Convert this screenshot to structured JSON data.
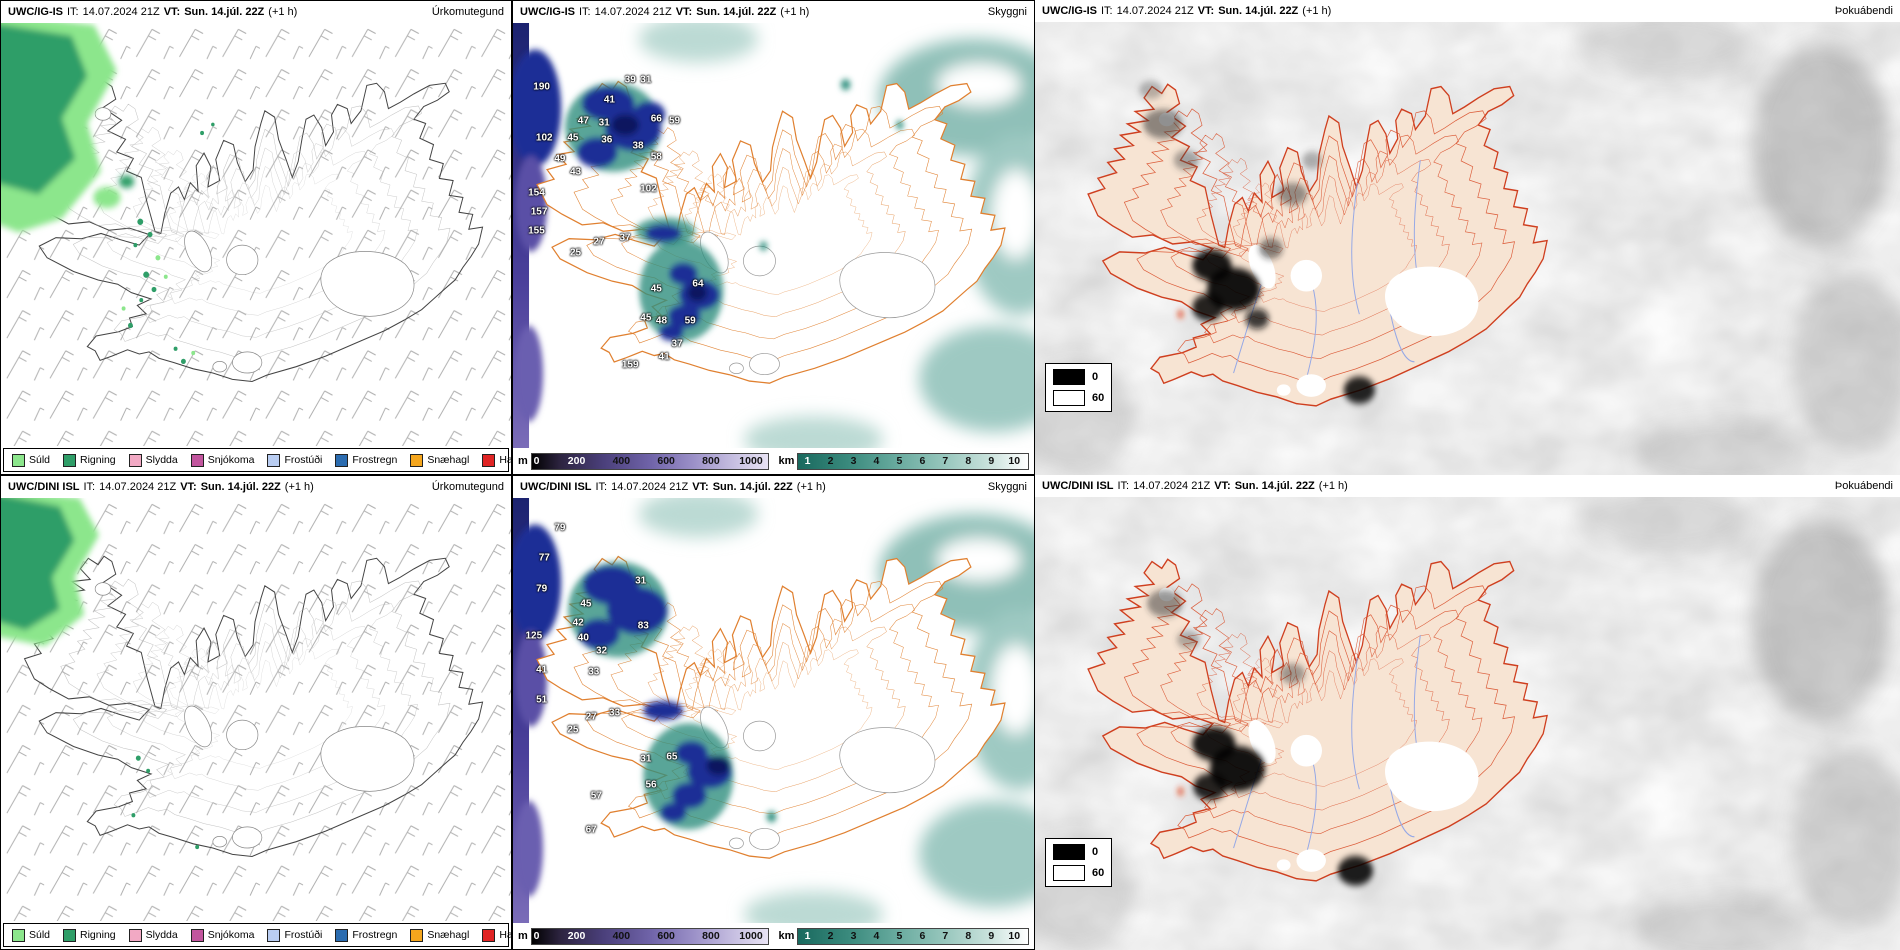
{
  "panels": [
    {
      "model": "UWC/IG-IS",
      "it_label": "IT:",
      "it_value": "14.07.2024 21Z",
      "vt_label": "VT:",
      "vt_value": "Sun. 14.júl. 22Z",
      "offset": "(+1 h)",
      "type_label": "Úrkomutegund"
    },
    {
      "model": "UWC/IG-IS",
      "it_label": "IT:",
      "it_value": "14.07.2024 21Z",
      "vt_label": "VT:",
      "vt_value": "Sun. 14.júl. 22Z",
      "offset": "(+1 h)",
      "type_label": "Skyggni"
    },
    {
      "model": "UWC/IG-IS",
      "it_label": "IT:",
      "it_value": "14.07.2024 21Z",
      "vt_label": "VT:",
      "vt_value": "Sun. 14.júl. 22Z",
      "offset": "(+1 h)",
      "type_label": "Þokuábendi"
    },
    {
      "model": "UWC/DINI ISL",
      "it_label": "IT:",
      "it_value": "14.07.2024 21Z",
      "vt_label": "VT:",
      "vt_value": "Sun. 14.júl. 22Z",
      "offset": "(+1 h)",
      "type_label": "Úrkomutegund"
    },
    {
      "model": "UWC/DINI ISL",
      "it_label": "IT:",
      "it_value": "14.07.2024 21Z",
      "vt_label": "VT:",
      "vt_value": "Sun. 14.júl. 22Z",
      "offset": "(+1 h)",
      "type_label": "Skyggni"
    },
    {
      "model": "UWC/DINI ISL",
      "it_label": "IT:",
      "it_value": "14.07.2024 21Z",
      "vt_label": "VT:",
      "vt_value": "Sun. 14.júl. 22Z",
      "offset": "(+1 h)",
      "type_label": "Þokuábendi"
    }
  ],
  "precip_legend": [
    {
      "label": "Súld",
      "color": "#8ce68c"
    },
    {
      "label": "Rigning",
      "color": "#2f9e68"
    },
    {
      "label": "Slydda",
      "color": "#f2a9c4"
    },
    {
      "label": "Snjókoma",
      "color": "#c2559e"
    },
    {
      "label": "Frostúði",
      "color": "#b9cdf2"
    },
    {
      "label": "Frostregn",
      "color": "#2b6cb0"
    },
    {
      "label": "Snæhagl",
      "color": "#f5a61d"
    },
    {
      "label": "Haglél",
      "color": "#e02424"
    }
  ],
  "cloudbase_bar": {
    "unit": "m",
    "colors": [
      "#000000",
      "#4a3f7a",
      "#6f63a8",
      "#9a8fc7",
      "#c3bbdf",
      "#e8e3f4"
    ],
    "ticks": [
      {
        "label": "0",
        "x": "2%",
        "color": "#ffffff"
      },
      {
        "label": "200",
        "x": "19%",
        "color": "#ffffff"
      },
      {
        "label": "400",
        "x": "38%",
        "color": "#111111"
      },
      {
        "label": "600",
        "x": "57%",
        "color": "#111111"
      },
      {
        "label": "800",
        "x": "76%",
        "color": "#111111"
      },
      {
        "label": "1000",
        "x": "93%",
        "color": "#111111"
      }
    ]
  },
  "visibility_bar": {
    "unit": "km",
    "colors": [
      "#19695e",
      "#3a8a7d",
      "#66a99d",
      "#93c4ba",
      "#c6e0da",
      "#ffffff"
    ],
    "ticks": [
      {
        "label": "1",
        "x": "4%",
        "color": "#ffffff"
      },
      {
        "label": "2",
        "x": "14%",
        "color": "#111111"
      },
      {
        "label": "3",
        "x": "24%",
        "color": "#111111"
      },
      {
        "label": "4",
        "x": "34%",
        "color": "#111111"
      },
      {
        "label": "5",
        "x": "44%",
        "color": "#111111"
      },
      {
        "label": "6",
        "x": "54%",
        "color": "#111111"
      },
      {
        "label": "7",
        "x": "64%",
        "color": "#111111"
      },
      {
        "label": "8",
        "x": "74%",
        "color": "#111111"
      },
      {
        "label": "9",
        "x": "84%",
        "color": "#111111"
      },
      {
        "label": "10",
        "x": "94%",
        "color": "#111111"
      }
    ]
  },
  "fog_legend": [
    {
      "value": "0",
      "color": "#000000"
    },
    {
      "value": "60",
      "color": "#ffffff"
    }
  ],
  "cloud_numbers_top": [
    {
      "v": "190",
      "x": "5.5%",
      "y": "15%"
    },
    {
      "v": "102",
      "x": "6%",
      "y": "27%"
    },
    {
      "v": "154",
      "x": "4.5%",
      "y": "40%"
    },
    {
      "v": "157",
      "x": "5%",
      "y": "44.5%"
    },
    {
      "v": "155",
      "x": "4.5%",
      "y": "49%"
    },
    {
      "v": "49",
      "x": "9%",
      "y": "32%"
    },
    {
      "v": "45",
      "x": "11.5%",
      "y": "27%"
    },
    {
      "v": "43",
      "x": "12%",
      "y": "35%"
    },
    {
      "v": "47",
      "x": "13.5%",
      "y": "23%"
    },
    {
      "v": "41",
      "x": "18.5%",
      "y": "18%"
    },
    {
      "v": "31",
      "x": "17.5%",
      "y": "23.5%"
    },
    {
      "v": "39",
      "x": "22.5%",
      "y": "13.5%"
    },
    {
      "v": "31",
      "x": "25.5%",
      "y": "13.5%"
    },
    {
      "v": "66",
      "x": "27.5%",
      "y": "22.5%"
    },
    {
      "v": "59",
      "x": "31%",
      "y": "23%"
    },
    {
      "v": "36",
      "x": "18%",
      "y": "27.5%"
    },
    {
      "v": "38",
      "x": "24%",
      "y": "29%"
    },
    {
      "v": "58",
      "x": "27.5%",
      "y": "31.5%"
    },
    {
      "v": "102",
      "x": "26%",
      "y": "39%"
    },
    {
      "v": "27",
      "x": "16.5%",
      "y": "51.5%"
    },
    {
      "v": "37",
      "x": "21.5%",
      "y": "50.5%"
    },
    {
      "v": "25",
      "x": "12%",
      "y": "54%"
    },
    {
      "v": "45",
      "x": "27.5%",
      "y": "62.5%"
    },
    {
      "v": "64",
      "x": "35.5%",
      "y": "61.5%"
    },
    {
      "v": "45",
      "x": "25.5%",
      "y": "69.5%"
    },
    {
      "v": "48",
      "x": "28.5%",
      "y": "70%"
    },
    {
      "v": "59",
      "x": "34%",
      "y": "70%"
    },
    {
      "v": "37",
      "x": "31.5%",
      "y": "75.5%"
    },
    {
      "v": "41",
      "x": "29%",
      "y": "78.5%"
    },
    {
      "v": "159",
      "x": "22.5%",
      "y": "80.5%"
    }
  ],
  "cloud_numbers_bottom": [
    {
      "v": "79",
      "x": "9%",
      "y": "7%"
    },
    {
      "v": "77",
      "x": "6%",
      "y": "14%"
    },
    {
      "v": "79",
      "x": "5.5%",
      "y": "21.5%"
    },
    {
      "v": "125",
      "x": "4%",
      "y": "32.5%"
    },
    {
      "v": "41",
      "x": "5.5%",
      "y": "40.5%"
    },
    {
      "v": "51",
      "x": "5.5%",
      "y": "47.5%"
    },
    {
      "v": "45",
      "x": "14%",
      "y": "25%"
    },
    {
      "v": "42",
      "x": "12.5%",
      "y": "29.5%"
    },
    {
      "v": "40",
      "x": "13.5%",
      "y": "33%"
    },
    {
      "v": "32",
      "x": "17%",
      "y": "36%"
    },
    {
      "v": "33",
      "x": "15.5%",
      "y": "41%"
    },
    {
      "v": "31",
      "x": "24.5%",
      "y": "19.5%"
    },
    {
      "v": "83",
      "x": "25%",
      "y": "30%"
    },
    {
      "v": "27",
      "x": "15%",
      "y": "51.5%"
    },
    {
      "v": "33",
      "x": "19.5%",
      "y": "50.5%"
    },
    {
      "v": "25",
      "x": "11.5%",
      "y": "54.5%"
    },
    {
      "v": "31",
      "x": "25.5%",
      "y": "61.5%"
    },
    {
      "v": "65",
      "x": "30.5%",
      "y": "61%"
    },
    {
      "v": "56",
      "x": "26.5%",
      "y": "67.5%"
    },
    {
      "v": "57",
      "x": "16%",
      "y": "70%"
    },
    {
      "v": "67",
      "x": "15%",
      "y": "78%"
    }
  ]
}
